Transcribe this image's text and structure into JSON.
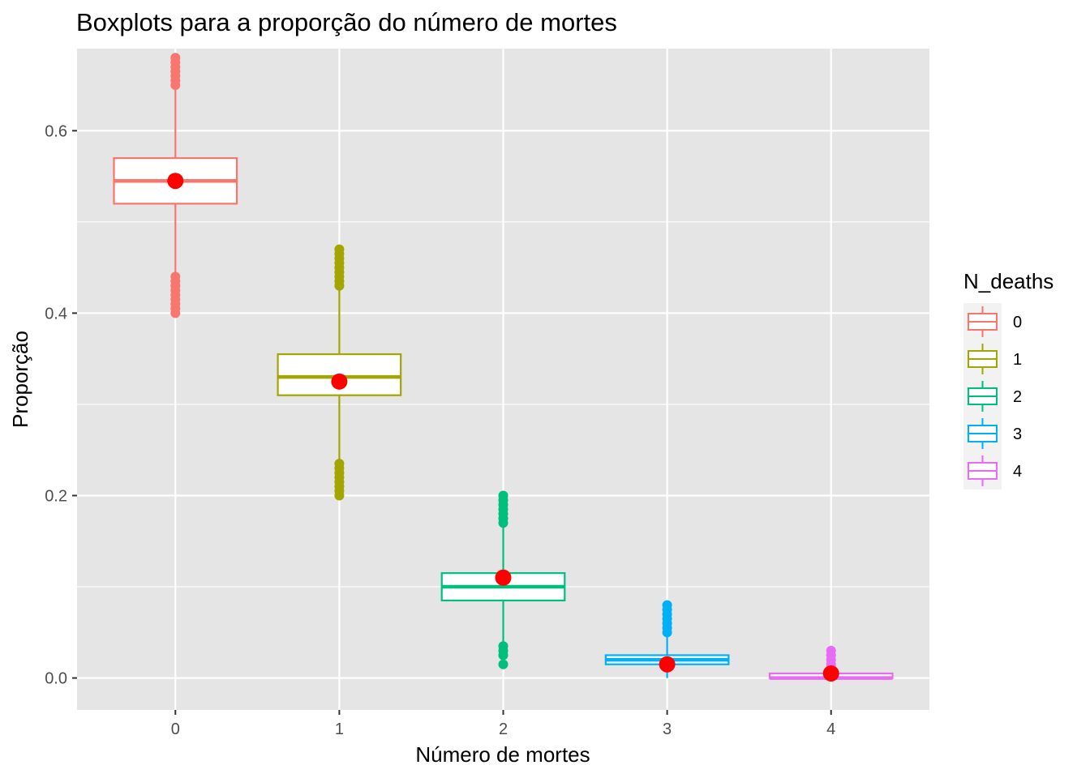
{
  "chart_data": {
    "type": "boxplot",
    "title": "Boxplots para a proporção do número de mortes",
    "xlabel": "Número de mortes",
    "ylabel": "Proporção",
    "categories": [
      "0",
      "1",
      "2",
      "3",
      "4"
    ],
    "ylim": [
      -0.035,
      0.69
    ],
    "yticks": [
      0.0,
      0.2,
      0.4,
      0.6
    ],
    "ytick_labels": [
      "0.0",
      "0.2",
      "0.4",
      "0.6"
    ],
    "grid": true,
    "legend": {
      "title": "N_deaths",
      "position": "right",
      "entries": [
        "0",
        "1",
        "2",
        "3",
        "4"
      ]
    },
    "boxes": [
      {
        "category": "0",
        "color": "#F8766D",
        "q1": 0.52,
        "median": 0.545,
        "q3": 0.57,
        "whisker_low": 0.445,
        "whisker_high": 0.645,
        "mean": 0.545,
        "outliers": [
          0.4,
          0.405,
          0.41,
          0.415,
          0.42,
          0.425,
          0.43,
          0.435,
          0.44,
          0.65,
          0.655,
          0.66,
          0.665,
          0.67,
          0.675,
          0.68
        ]
      },
      {
        "category": "1",
        "color": "#A3A500",
        "q1": 0.31,
        "median": 0.33,
        "q3": 0.355,
        "whisker_low": 0.24,
        "whisker_high": 0.425,
        "mean": 0.325,
        "outliers": [
          0.2,
          0.205,
          0.21,
          0.215,
          0.22,
          0.225,
          0.23,
          0.235,
          0.43,
          0.435,
          0.44,
          0.445,
          0.45,
          0.455,
          0.46,
          0.465,
          0.47
        ]
      },
      {
        "category": "2",
        "color": "#00BF7D",
        "q1": 0.085,
        "median": 0.1,
        "q3": 0.115,
        "whisker_low": 0.04,
        "whisker_high": 0.165,
        "mean": 0.11,
        "outliers": [
          0.015,
          0.025,
          0.03,
          0.035,
          0.17,
          0.175,
          0.18,
          0.185,
          0.19,
          0.195,
          0.2
        ]
      },
      {
        "category": "3",
        "color": "#00B0F6",
        "q1": 0.015,
        "median": 0.02,
        "q3": 0.025,
        "whisker_low": 0.0,
        "whisker_high": 0.045,
        "mean": 0.015,
        "outliers": [
          0.05,
          0.055,
          0.06,
          0.065,
          0.07,
          0.075,
          0.08
        ]
      },
      {
        "category": "4",
        "color": "#E76BF3",
        "q1": 0.0,
        "median": 0.0,
        "q3": 0.005,
        "whisker_low": 0.0,
        "whisker_high": 0.01,
        "mean": 0.005,
        "outliers": [
          0.015,
          0.02,
          0.025,
          0.03
        ]
      }
    ],
    "mean_marker_color": "#FF0000"
  },
  "colors": {
    "panel_background": "#E5E5E5",
    "grid_major": "#FFFFFF",
    "tick_text": "#4d4d4d"
  }
}
